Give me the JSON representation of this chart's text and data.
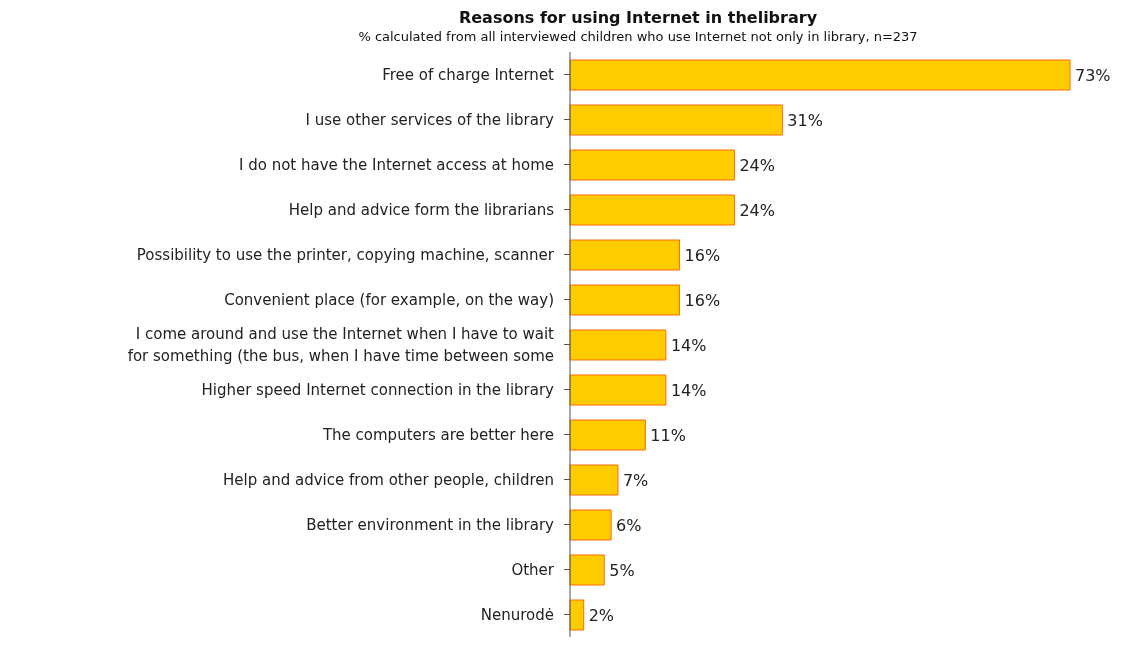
{
  "chart_data": {
    "type": "bar",
    "orientation": "horizontal",
    "title": "Reasons for using Internet in thelibrary",
    "subtitle": "% calculated from all interviewed children who use Internet not only in library, n=237",
    "categories": [
      "Free of charge Internet",
      "I use other services of the library",
      "I do not have the Internet access at home",
      "Help and advice form the librarians",
      "Possibility to use the printer, copying machine, scanner",
      "Convenient place (for example, on the way)",
      "I come around and use the Internet when I have to wait for something (the bus, when I have time between some",
      "Higher speed Internet connection in the library",
      "The computers are better here",
      "Help and advice from other people, children",
      "Better environment in the library",
      "Other",
      "Nenurodė"
    ],
    "values": [
      73,
      31,
      24,
      24,
      16,
      16,
      14,
      14,
      11,
      7,
      6,
      5,
      2
    ],
    "value_labels": [
      "73%",
      "31%",
      "24%",
      "24%",
      "16%",
      "16%",
      "14%",
      "14%",
      "11%",
      "7%",
      "6%",
      "5%",
      "2%"
    ],
    "color": "#ffcc00",
    "legend": false,
    "grid": false
  }
}
